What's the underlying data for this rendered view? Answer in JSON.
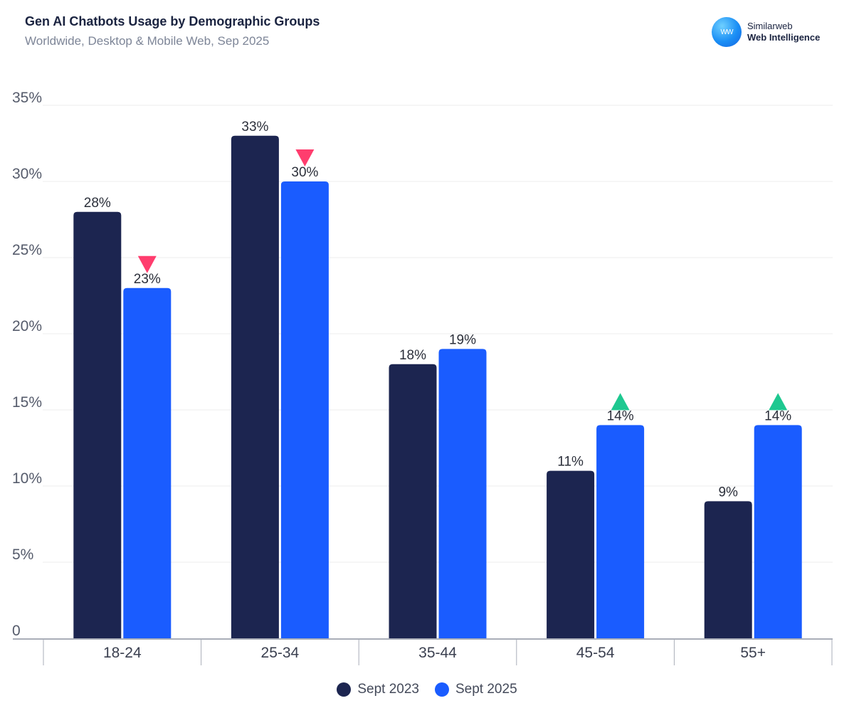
{
  "header": {
    "title": "Gen AI Chatbots Usage by Demographic Groups",
    "subtitle": "Worldwide, Desktop & Mobile Web, Sep 2025"
  },
  "brand": {
    "logo_text": "WW",
    "line1": "Similarweb",
    "line2": "Web Intelligence"
  },
  "colors": {
    "series_2023": "#1c2550",
    "series_2025": "#1a5cff",
    "decrease": "#ff3d6e",
    "increase": "#1ec890",
    "grid": "#ececec",
    "axis": "#a9aeb8"
  },
  "chart_data": {
    "type": "bar",
    "title": "Gen AI Chatbots Usage by Demographic Groups",
    "subtitle": "Worldwide, Desktop & Mobile Web, Sep 2025",
    "categories": [
      "18-24",
      "25-34",
      "35-44",
      "45-54",
      "55+"
    ],
    "series": [
      {
        "name": "Sept 2023",
        "values": [
          28,
          33,
          18,
          11,
          9
        ]
      },
      {
        "name": "Sept 2025",
        "values": [
          23,
          30,
          19,
          14,
          14
        ]
      }
    ],
    "data_labels": {
      "Sept 2023": [
        "28%",
        "33%",
        "18%",
        "11%",
        "9%"
      ],
      "Sept 2025": [
        "23%",
        "30%",
        "19%",
        "14%",
        "14%"
      ]
    },
    "change_markers": [
      "down",
      "down",
      "none",
      "up",
      "up"
    ],
    "yticks": [
      "0",
      "5%",
      "10%",
      "15%",
      "20%",
      "25%",
      "30%",
      "35%"
    ],
    "ylim": [
      0,
      35
    ],
    "grid": true,
    "legend_position": "bottom-center"
  }
}
